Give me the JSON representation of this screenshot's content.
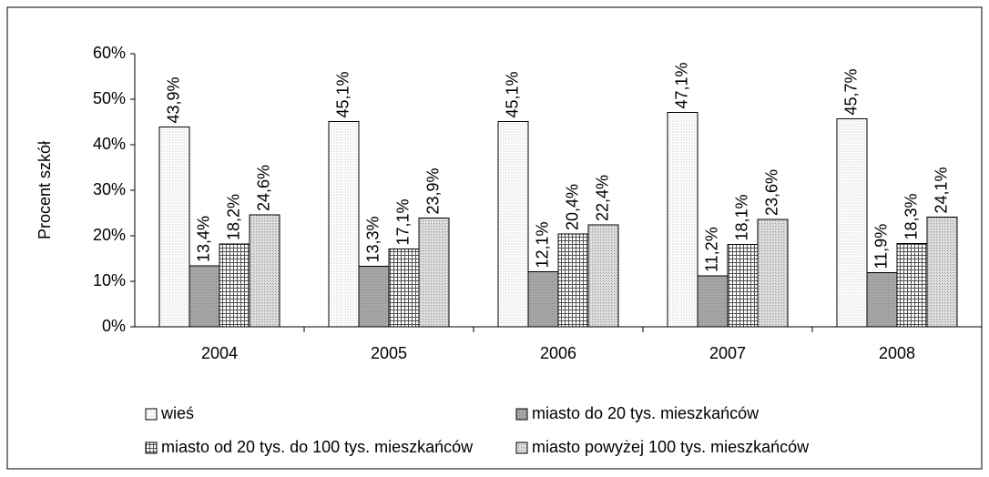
{
  "chart_data": {
    "type": "bar",
    "y_label": "Procent szkół",
    "categories": [
      "2004",
      "2005",
      "2006",
      "2007",
      "2008"
    ],
    "series": [
      {
        "name": "wieś",
        "color": "#d8d8d8",
        "values": [
          43.9,
          45.1,
          45.1,
          47.1,
          45.7
        ],
        "value_labels": [
          "43,9%",
          "45,1%",
          "45,1%",
          "47,1%",
          "45,7%"
        ]
      },
      {
        "name": "miasto do 20 tys. mieszkańców",
        "color": "#a6a6a6",
        "values": [
          13.4,
          13.3,
          12.1,
          11.2,
          11.9
        ],
        "value_labels": [
          "13,4%",
          "13,3%",
          "12,1%",
          "11,2%",
          "11,9%"
        ]
      },
      {
        "name": "miasto od 20 tys. do 100 tys. mieszkańców",
        "color": "#505050",
        "values": [
          18.2,
          17.1,
          20.4,
          18.1,
          18.3
        ],
        "value_labels": [
          "18,2%",
          "17,1%",
          "20,4%",
          "18,1%",
          "18,3%"
        ]
      },
      {
        "name": "miasto powyżej 100 tys. mieszkańców",
        "color": "#b8b8b8",
        "values": [
          24.6,
          23.9,
          22.4,
          23.6,
          24.1
        ],
        "value_labels": [
          "24,6%",
          "23,9%",
          "22,4%",
          "23,6%",
          "24,1%"
        ]
      }
    ],
    "ylim": [
      0,
      60
    ],
    "yticks": [
      {
        "value": 0,
        "label": "0%"
      },
      {
        "value": 10,
        "label": "10%"
      },
      {
        "value": 20,
        "label": "20%"
      },
      {
        "value": 30,
        "label": "30%"
      },
      {
        "value": 40,
        "label": "40%"
      },
      {
        "value": 50,
        "label": "50%"
      },
      {
        "value": 60,
        "label": "60%"
      }
    ],
    "grid": false
  }
}
